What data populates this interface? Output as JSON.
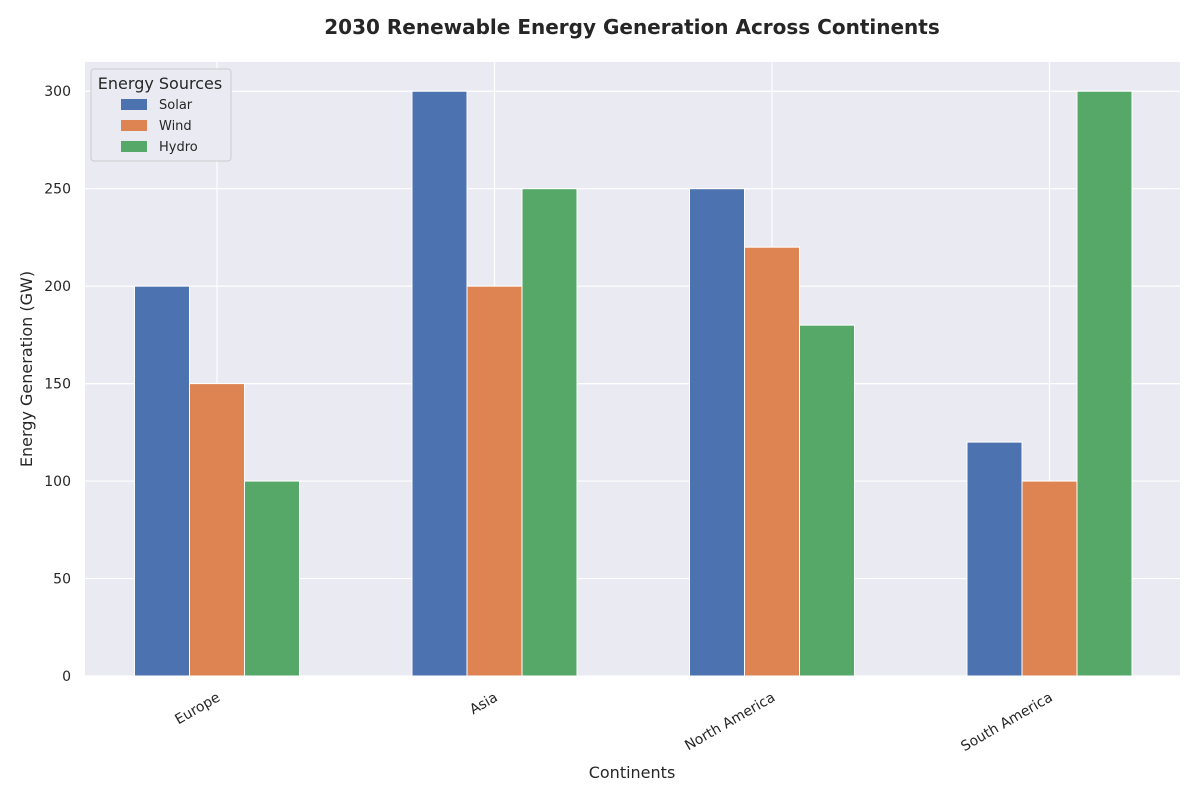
{
  "chart_data": {
    "type": "bar",
    "title": "2030 Renewable Energy Generation Across Continents",
    "xlabel": "Continents",
    "ylabel": "Energy Generation (GW)",
    "categories": [
      "Europe",
      "Asia",
      "North America",
      "South America"
    ],
    "series": [
      {
        "name": "Solar",
        "values": [
          200,
          300,
          250,
          120
        ],
        "color": "#4c72b0"
      },
      {
        "name": "Wind",
        "values": [
          150,
          200,
          220,
          100
        ],
        "color": "#dd8452"
      },
      {
        "name": "Hydro",
        "values": [
          100,
          250,
          180,
          300
        ],
        "color": "#55a868"
      }
    ],
    "ylim": [
      0,
      315
    ],
    "yticks": [
      0,
      50,
      100,
      150,
      200,
      250,
      300
    ],
    "grid": true,
    "legend": {
      "title": "Energy Sources",
      "placement": "top-left"
    },
    "colors": {
      "plot_background": "#eaeaf2",
      "grid": "#ffffff"
    }
  }
}
